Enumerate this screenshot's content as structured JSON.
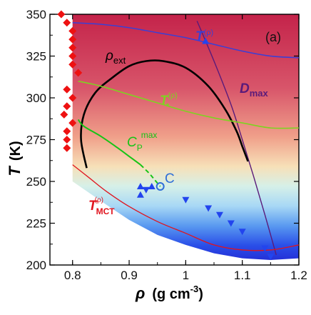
{
  "chart_data": {
    "type": "scatter",
    "panel_label": "(a)",
    "xlabel_symbol": "ρ",
    "xlabel_units": "(g cm",
    "xlabel_exponent": "-3",
    "xlabel_close": ")",
    "ylabel_symbol": "T",
    "ylabel_units": "(K)",
    "xlim": [
      0.76,
      1.2
    ],
    "ylim": [
      200,
      350
    ],
    "xticks": [
      0.8,
      0.9,
      1.0,
      1.1,
      1.2
    ],
    "xtick_labels": [
      "0.8",
      "0.9",
      "1",
      "1.1",
      "1.2"
    ],
    "yticks": [
      200,
      225,
      250,
      275,
      300,
      325,
      350
    ],
    "ytick_labels": [
      "200",
      "225",
      "250",
      "275",
      "300",
      "325",
      "350"
    ],
    "colors": {
      "T_rho_blue": "#3a3fd6",
      "D_max": "#5a1a7a",
      "rho_ext": "#000000",
      "T_star_green": "#7ed321",
      "C_p_max": "#16c416",
      "T_MCT": "#e0141e",
      "diamonds": "#ee1111",
      "triangles": "#2244ee",
      "point_C": "#2f6fd8"
    },
    "labels": {
      "rho_ext": {
        "main": "ρ",
        "sub": "ext"
      },
      "T_rho": {
        "main": "T",
        "sup": "(ρ)"
      },
      "D_max": {
        "main": "D",
        "sub": "max"
      },
      "T_star": {
        "main": "T",
        "sub": "*",
        "sup": "(ρ)"
      },
      "C_p_max": {
        "main": "C",
        "sub": "P",
        "sup": "max"
      },
      "T_MCT": {
        "main": "T",
        "sub": "MCT",
        "sup": "(ρ)"
      },
      "point_C": "C"
    },
    "series": [
      {
        "key": "T_rho_blue",
        "kind": "line",
        "x": [
          0.8,
          0.85,
          0.9,
          0.95,
          1.0,
          1.05,
          1.1,
          1.15,
          1.2
        ],
        "y": [
          345,
          344,
          342,
          339,
          336,
          332,
          328,
          325,
          324
        ]
      },
      {
        "key": "D_max",
        "kind": "line",
        "x": [
          1.02,
          1.05,
          1.08,
          1.1,
          1.12,
          1.14,
          1.16
        ],
        "y": [
          346,
          322,
          296,
          275,
          253,
          230,
          206
        ]
      },
      {
        "key": "rho_ext",
        "kind": "line",
        "x": [
          0.825,
          0.815,
          0.82,
          0.84,
          0.87,
          0.9,
          0.93,
          0.96,
          1.0,
          1.04,
          1.07,
          1.09,
          1.1,
          1.11
        ],
        "y": [
          258,
          275,
          290,
          303,
          312,
          319,
          322,
          322,
          318,
          307,
          293,
          280,
          271,
          262
        ]
      },
      {
        "key": "T_star_green",
        "kind": "line",
        "x": [
          0.81,
          0.85,
          0.9,
          0.95,
          1.0,
          1.05,
          1.1,
          1.15,
          1.2
        ],
        "y": [
          310,
          307,
          302,
          297,
          292,
          288,
          285,
          282,
          282
        ]
      },
      {
        "key": "C_p_max",
        "kind": "line",
        "x": [
          0.81,
          0.82,
          0.85,
          0.88,
          0.9,
          0.92
        ],
        "y": [
          287,
          283,
          277,
          270,
          265,
          260
        ]
      },
      {
        "key": "C_p_max_dashed",
        "kind": "dashed_line",
        "x": [
          0.92,
          0.935,
          0.945,
          0.955
        ],
        "y": [
          260,
          255,
          251,
          247
        ]
      },
      {
        "key": "T_MCT",
        "kind": "line",
        "x": [
          0.8,
          0.83,
          0.86,
          0.9,
          0.95,
          1.0,
          1.05,
          1.1,
          1.15,
          1.2
        ],
        "y": [
          260,
          252,
          244,
          235,
          226,
          219,
          212,
          209,
          209,
          212
        ]
      },
      {
        "key": "diamonds",
        "kind": "marker_diamond",
        "x": [
          0.78,
          0.79,
          0.8,
          0.8,
          0.8,
          0.8,
          0.8,
          0.81,
          0.79,
          0.8,
          0.785,
          0.79,
          0.8,
          0.79,
          0.79,
          0.79
        ],
        "y": [
          350,
          345,
          340,
          335,
          330,
          325,
          320,
          315,
          305,
          300,
          290,
          295,
          285,
          280,
          275,
          270
        ]
      },
      {
        "key": "triangles_up",
        "kind": "marker_triangle_up",
        "x": [
          0.92,
          0.92,
          0.94,
          1.035
        ],
        "y": [
          247,
          242,
          247,
          334
        ]
      },
      {
        "key": "triangles_down",
        "kind": "marker_triangle_down",
        "x": [
          0.93,
          1.0,
          1.04,
          1.06,
          1.08,
          1.1,
          1.14,
          1.15
        ],
        "y": [
          245,
          239,
          234,
          230,
          225,
          220,
          210,
          205
        ]
      },
      {
        "key": "point_C",
        "kind": "marker_circle_open",
        "x": [
          0.955
        ],
        "y": [
          247
        ]
      }
    ]
  }
}
